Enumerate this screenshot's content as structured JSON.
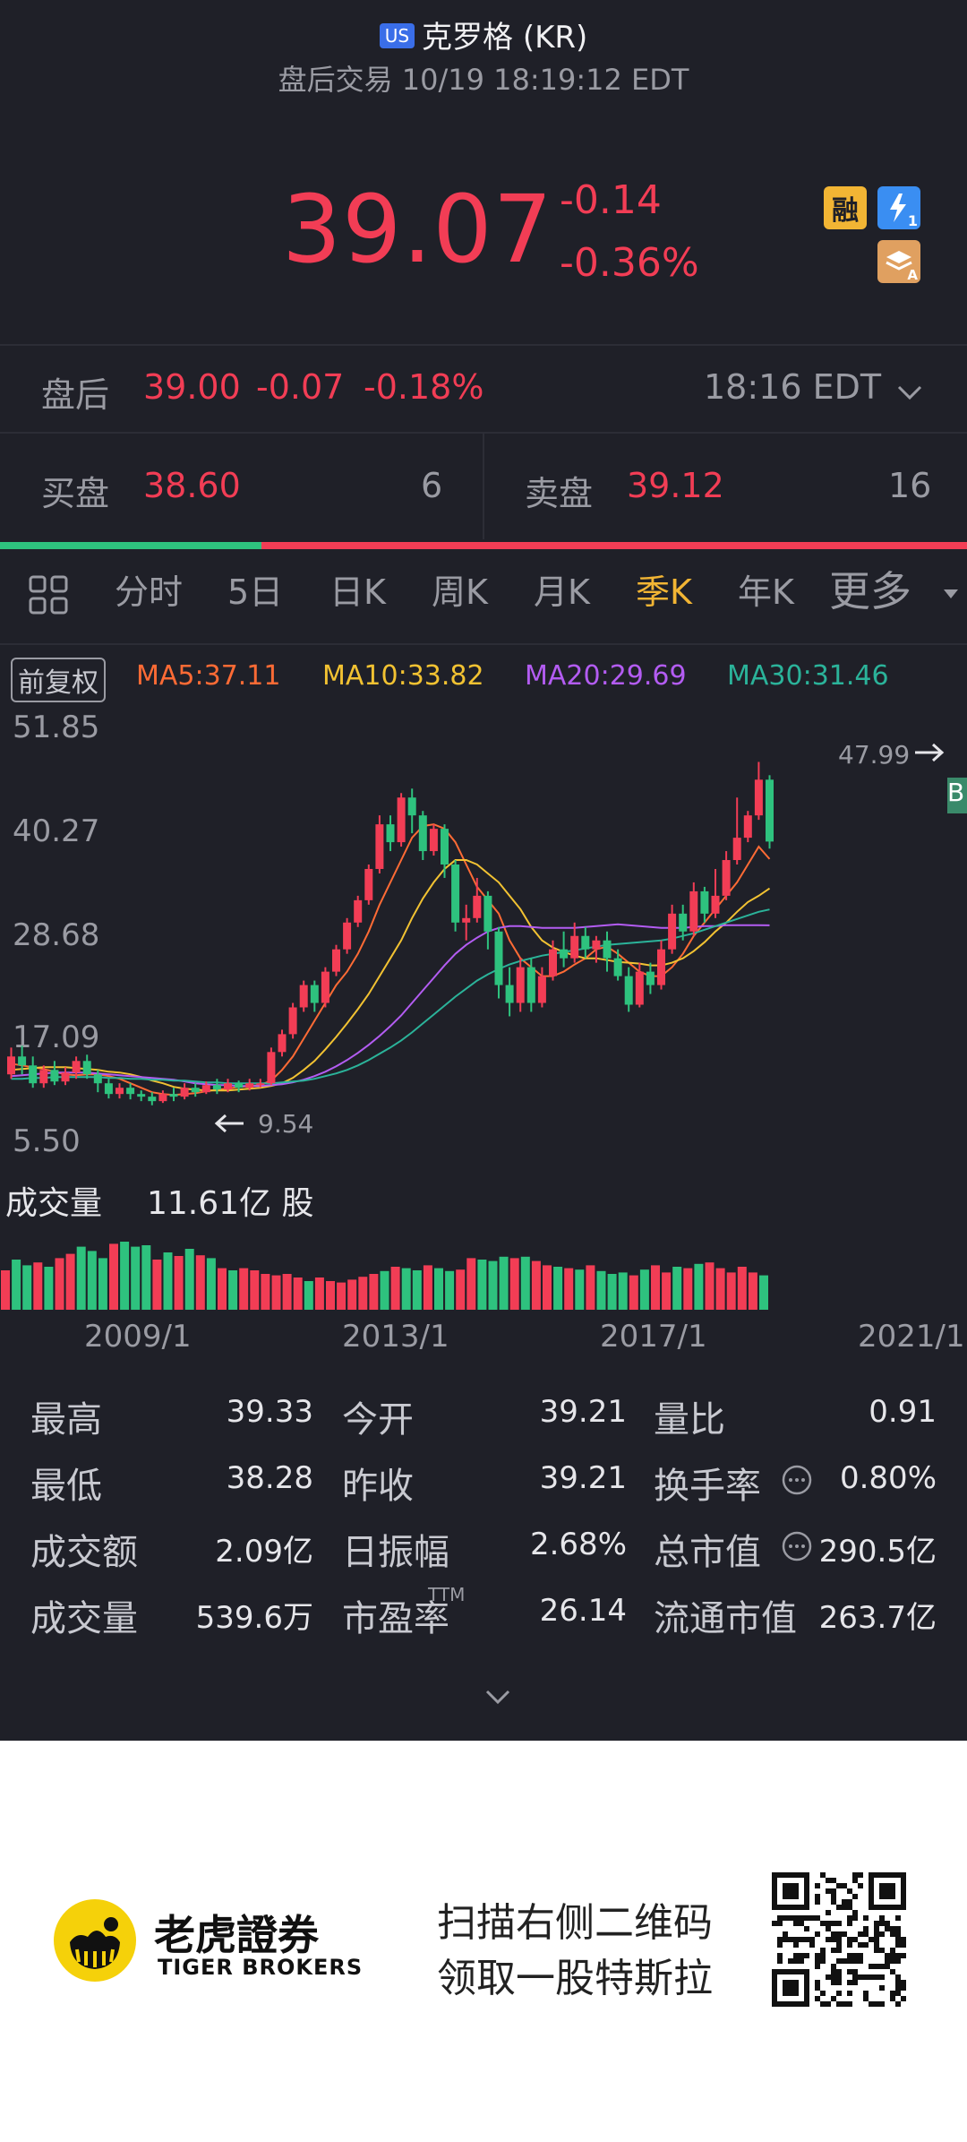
{
  "header": {
    "market_badge": "US",
    "title": "克罗格 (KR)",
    "subtitle": "盘后交易 10/19 18:19:12 EDT"
  },
  "quote": {
    "price": "39.07",
    "change": "-0.14",
    "change_pct": "-0.36%",
    "icon_rong": "融",
    "icon_flash_num": "1",
    "icon_stack_letter": "A"
  },
  "after_hours": {
    "label": "盘后",
    "price": "39.00",
    "change": "-0.07",
    "change_pct": "-0.18%",
    "time": "18:16 EDT"
  },
  "order_book": {
    "bid_label": "买盘",
    "bid_price": "38.60",
    "bid_size": "6",
    "ask_label": "卖盘",
    "ask_price": "39.12",
    "ask_size": "16",
    "bid_ratio": 0.27
  },
  "tabs": [
    "分时",
    "5日",
    "日K",
    "周K",
    "月K",
    "季K",
    "年K",
    "更多"
  ],
  "active_tab": "季K",
  "indicators": {
    "adjust_label": "前复权",
    "ma5": "MA5:37.11",
    "ma10": "MA10:33.82",
    "ma20": "MA20:29.69",
    "ma30": "MA30:31.46"
  },
  "colors": {
    "up": "#f23d55",
    "down": "#2ec27e",
    "ma5": "#ff6b35",
    "ma10": "#f2c232",
    "ma20": "#b35cf2",
    "ma30": "#2bb39a"
  },
  "chart_data": {
    "type": "candlestick",
    "y_ticks": [
      "51.85",
      "40.27",
      "28.68",
      "17.09",
      "5.50"
    ],
    "ylim": [
      5.5,
      51.85
    ],
    "x_ticks": [
      "2009/1",
      "2013/1",
      "2017/1",
      "2021/1"
    ],
    "high_marker": "47.99",
    "low_marker": "9.54",
    "badge_b": "B",
    "candles": [
      [
        13.0,
        15.0,
        16.0,
        12.5
      ],
      [
        15.0,
        14.0,
        16.2,
        13.0
      ],
      [
        14.0,
        12.0,
        15.0,
        11.5
      ],
      [
        12.0,
        13.5,
        14.0,
        11.5
      ],
      [
        13.5,
        12.2,
        14.5,
        11.8
      ],
      [
        12.2,
        13.2,
        13.8,
        11.8
      ],
      [
        13.2,
        14.5,
        15.0,
        12.5
      ],
      [
        14.5,
        13.0,
        15.2,
        12.5
      ],
      [
        13.0,
        12.0,
        13.5,
        11.0
      ],
      [
        12.0,
        10.8,
        12.5,
        10.3
      ],
      [
        10.8,
        11.5,
        12.0,
        10.3
      ],
      [
        11.5,
        10.8,
        12.0,
        10.2
      ],
      [
        10.8,
        10.5,
        11.2,
        10.0
      ],
      [
        10.5,
        10.0,
        11.0,
        9.54
      ],
      [
        10.0,
        10.8,
        11.2,
        9.8
      ],
      [
        10.8,
        10.5,
        11.5,
        10.0
      ],
      [
        10.5,
        11.5,
        12.0,
        10.2
      ],
      [
        11.5,
        11.0,
        12.0,
        10.5
      ],
      [
        11.0,
        11.8,
        12.2,
        10.8
      ],
      [
        11.8,
        11.3,
        12.5,
        10.8
      ],
      [
        11.3,
        12.0,
        12.5,
        11.0
      ],
      [
        12.0,
        11.5,
        12.3,
        11.0
      ],
      [
        11.5,
        12.0,
        12.5,
        11.2
      ],
      [
        12.0,
        12.0,
        12.5,
        11.5
      ],
      [
        12.0,
        15.5,
        16.0,
        11.8
      ],
      [
        15.5,
        17.5,
        18.0,
        15.0
      ],
      [
        17.5,
        20.5,
        21.0,
        17.0
      ],
      [
        20.5,
        23.0,
        23.5,
        20.0
      ],
      [
        23.0,
        21.0,
        23.5,
        20.0
      ],
      [
        21.0,
        24.5,
        25.0,
        20.5
      ],
      [
        24.5,
        27.0,
        27.5,
        24.0
      ],
      [
        27.0,
        30.0,
        30.5,
        26.5
      ],
      [
        30.0,
        32.5,
        33.0,
        29.5
      ],
      [
        32.5,
        36.0,
        36.5,
        32.0
      ],
      [
        36.0,
        41.0,
        42.0,
        35.5
      ],
      [
        41.0,
        39.0,
        42.0,
        38.0
      ],
      [
        39.0,
        44.0,
        44.5,
        38.5
      ],
      [
        44.0,
        42.0,
        45.0,
        40.0
      ],
      [
        42.0,
        38.0,
        42.5,
        37.0
      ],
      [
        38.0,
        40.5,
        41.0,
        37.5
      ],
      [
        40.5,
        36.5,
        41.0,
        35.0
      ],
      [
        36.5,
        30.0,
        37.0,
        29.0
      ],
      [
        30.0,
        30.5,
        32.0,
        28.0
      ],
      [
        30.5,
        33.0,
        35.0,
        30.0
      ],
      [
        33.0,
        29.0,
        33.5,
        27.0
      ],
      [
        29.0,
        23.0,
        29.5,
        21.5
      ],
      [
        23.0,
        21.0,
        25.0,
        19.5
      ],
      [
        21.0,
        25.0,
        26.0,
        20.0
      ],
      [
        25.0,
        21.0,
        26.0,
        20.0
      ],
      [
        21.0,
        24.0,
        25.0,
        20.5
      ],
      [
        24.0,
        27.0,
        28.0,
        23.5
      ],
      [
        27.0,
        26.0,
        29.0,
        25.0
      ],
      [
        26.0,
        28.5,
        30.0,
        25.5
      ],
      [
        28.5,
        27.0,
        29.5,
        26.0
      ],
      [
        27.0,
        28.0,
        28.5,
        25.5
      ],
      [
        28.0,
        26.0,
        29.0,
        24.5
      ],
      [
        26.0,
        24.0,
        27.0,
        23.5
      ],
      [
        24.0,
        20.8,
        25.0,
        20.0
      ],
      [
        20.8,
        24.5,
        25.5,
        20.5
      ],
      [
        24.5,
        23.0,
        25.5,
        22.0
      ],
      [
        23.0,
        27.0,
        28.0,
        22.5
      ],
      [
        27.0,
        31.0,
        32.0,
        26.5
      ],
      [
        31.0,
        29.0,
        32.0,
        28.0
      ],
      [
        29.0,
        33.5,
        34.5,
        28.5
      ],
      [
        33.5,
        31.0,
        34.0,
        30.0
      ],
      [
        31.0,
        33.0,
        36.0,
        30.5
      ],
      [
        33.0,
        37.0,
        38.0,
        32.5
      ],
      [
        37.0,
        39.5,
        44.0,
        36.5
      ],
      [
        39.5,
        42.0,
        42.5,
        39.0
      ],
      [
        42.0,
        46.0,
        47.99,
        41.5
      ],
      [
        46.0,
        39.07,
        46.5,
        38.28
      ]
    ],
    "ma_series": [
      {
        "name": "MA5",
        "values": [
          14.2,
          14.0,
          13.8,
          13.6,
          13.3,
          13.0,
          12.9,
          13.0,
          13.0,
          12.8,
          12.5,
          12.0,
          11.5,
          11.0,
          10.8,
          10.7,
          10.8,
          10.9,
          11.1,
          11.3,
          11.4,
          11.6,
          11.7,
          11.8,
          12.3,
          13.5,
          15.0,
          17.0,
          19.0,
          21.0,
          23.0,
          24.5,
          26.5,
          29.0,
          32.0,
          34.5,
          37.0,
          39.5,
          40.8,
          41.0,
          40.5,
          39.0,
          36.5,
          34.0,
          32.5,
          31.0,
          28.0,
          26.0,
          25.0,
          24.0,
          24.0,
          24.5,
          25.3,
          26.0,
          27.0,
          27.3,
          26.5,
          25.5,
          24.5,
          24.0,
          24.0,
          25.0,
          26.5,
          28.5,
          30.0,
          31.5,
          33.0,
          34.5,
          36.5,
          38.5,
          37.11
        ]
      },
      {
        "name": "MA10",
        "values": [
          13.5,
          13.6,
          13.7,
          13.8,
          13.8,
          13.8,
          13.7,
          13.6,
          13.5,
          13.3,
          13.2,
          13.0,
          12.7,
          12.3,
          12.0,
          11.6,
          11.4,
          11.3,
          11.2,
          11.2,
          11.2,
          11.3,
          11.4,
          11.5,
          11.7,
          12.0,
          12.6,
          13.5,
          14.5,
          15.8,
          17.2,
          18.7,
          20.3,
          22.0,
          24.0,
          26.0,
          28.0,
          30.5,
          32.7,
          34.5,
          36.0,
          37.0,
          37.0,
          36.5,
          35.5,
          34.5,
          33.0,
          31.5,
          29.5,
          28.0,
          27.2,
          26.7,
          26.3,
          26.0,
          26.0,
          25.8,
          25.6,
          25.5,
          25.4,
          25.2,
          25.2,
          25.5,
          26.0,
          26.8,
          27.8,
          29.0,
          30.0,
          31.2,
          32.3,
          33.0,
          33.82
        ]
      },
      {
        "name": "MA20",
        "values": [
          12.8,
          12.9,
          13.0,
          13.1,
          13.2,
          13.2,
          13.2,
          13.2,
          13.1,
          13.0,
          12.9,
          12.8,
          12.7,
          12.6,
          12.5,
          12.4,
          12.2,
          12.0,
          11.9,
          11.8,
          11.8,
          11.7,
          11.7,
          11.7,
          11.8,
          11.9,
          12.1,
          12.4,
          12.8,
          13.3,
          13.9,
          14.6,
          15.4,
          16.3,
          17.3,
          18.4,
          19.6,
          21.0,
          22.4,
          23.8,
          25.2,
          26.5,
          27.5,
          28.3,
          29.0,
          29.4,
          29.6,
          29.6,
          29.5,
          29.4,
          29.4,
          29.4,
          29.4,
          29.5,
          29.6,
          29.7,
          29.8,
          29.7,
          29.6,
          29.5,
          29.4,
          29.4,
          29.4,
          29.5,
          29.6,
          29.6,
          29.7,
          29.7,
          29.7,
          29.7,
          29.69
        ]
      },
      {
        "name": "MA30",
        "values": [
          12.5,
          12.5,
          12.6,
          12.6,
          12.7,
          12.7,
          12.7,
          12.7,
          12.7,
          12.6,
          12.6,
          12.5,
          12.5,
          12.4,
          12.4,
          12.3,
          12.3,
          12.2,
          12.1,
          12.1,
          12.0,
          12.0,
          12.0,
          12.0,
          12.0,
          12.1,
          12.2,
          12.3,
          12.5,
          12.8,
          13.1,
          13.5,
          14.0,
          14.6,
          15.3,
          16.0,
          16.8,
          17.7,
          18.7,
          19.7,
          20.7,
          21.7,
          22.6,
          23.5,
          24.2,
          24.8,
          25.3,
          25.7,
          26.0,
          26.3,
          26.5,
          26.7,
          26.9,
          27.1,
          27.3,
          27.5,
          27.6,
          27.7,
          27.8,
          27.9,
          28.0,
          28.2,
          28.5,
          28.8,
          29.2,
          29.6,
          30.0,
          30.4,
          30.8,
          31.2,
          31.46
        ]
      }
    ],
    "volume_label": "成交量",
    "volume_total": "11.61亿 股",
    "volumes": [
      55,
      70,
      62,
      66,
      60,
      72,
      78,
      88,
      82,
      72,
      92,
      95,
      88,
      90,
      70,
      80,
      75,
      85,
      76,
      72,
      58,
      55,
      58,
      55,
      50,
      48,
      50,
      45,
      40,
      45,
      40,
      38,
      42,
      46,
      50,
      54,
      60,
      58,
      55,
      62,
      58,
      54,
      56,
      72,
      70,
      68,
      74,
      72,
      74,
      68,
      62,
      60,
      58,
      56,
      62,
      54,
      50,
      52,
      48,
      56,
      62,
      52,
      60,
      58,
      64,
      66,
      58,
      52,
      60,
      52,
      48
    ],
    "vol_max": 95
  },
  "stats": [
    {
      "label": "最高",
      "value": "39.33"
    },
    {
      "label": "今开",
      "value": "39.21"
    },
    {
      "label": "量比",
      "value": "0.91"
    },
    {
      "label": "最低",
      "value": "38.28"
    },
    {
      "label": "昨收",
      "value": "39.21"
    },
    {
      "label": "换手率",
      "value": "0.80%"
    },
    {
      "label": "成交额",
      "value": "2.09亿"
    },
    {
      "label": "日振幅",
      "value": "2.68%"
    },
    {
      "label": "总市值",
      "value": "290.5亿"
    },
    {
      "label": "成交量",
      "value": "539.6万"
    },
    {
      "label": "市盈率",
      "value": "26.14"
    },
    {
      "label": "流通市值",
      "value": "263.7亿"
    }
  ],
  "pe_suffix": "TTM",
  "footer": {
    "brand_cn": "老虎證券",
    "brand_en": "TIGER BROKERS",
    "promo_line1": "扫描右侧二维码",
    "promo_line2": "领取一股特斯拉"
  }
}
